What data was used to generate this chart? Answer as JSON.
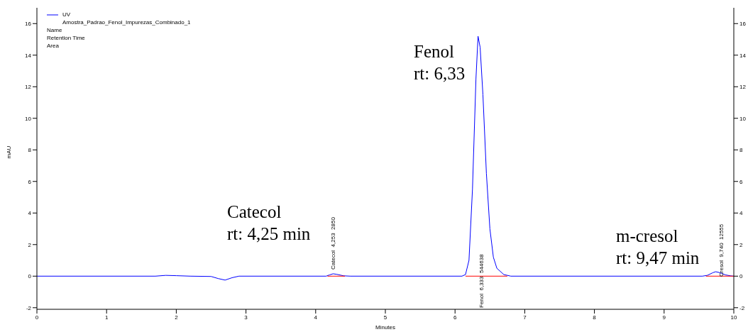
{
  "chart_data": {
    "type": "line",
    "xlabel": "Minutes",
    "ylabel": "mAU",
    "xlim": [
      0,
      10
    ],
    "xticks": [
      0,
      1,
      2,
      3,
      4,
      5,
      6,
      7,
      8,
      9,
      10
    ],
    "ylim": [
      -2.1,
      17.0
    ],
    "yticks": [
      -2,
      0,
      2,
      4,
      6,
      8,
      10,
      12,
      14,
      16
    ],
    "y2lim": [
      -2.1,
      17.0
    ],
    "y2ticks": [
      -2,
      0,
      2,
      4,
      6,
      8,
      10,
      12,
      14,
      16
    ],
    "legend": "top left",
    "series": [
      {
        "name": "UV",
        "color": "#0000ff",
        "x": [
          0,
          1.7,
          1.85,
          2.0,
          2.2,
          2.5,
          2.6,
          2.7,
          2.8,
          2.9,
          4.15,
          4.2,
          4.25,
          4.3,
          4.4,
          4.5,
          6.1,
          6.15,
          6.2,
          6.25,
          6.3,
          6.33,
          6.36,
          6.4,
          6.45,
          6.5,
          6.55,
          6.6,
          6.7,
          6.8,
          9.55,
          9.62,
          9.7,
          9.74,
          9.8,
          9.88,
          9.95,
          10
        ],
        "values": [
          0,
          0,
          0.05,
          0.03,
          0,
          -0.02,
          -0.15,
          -0.25,
          -0.1,
          0,
          0,
          0.08,
          0.15,
          0.12,
          0.02,
          0,
          0,
          0.1,
          1.0,
          5.5,
          12.5,
          15.2,
          14.5,
          11.5,
          6.5,
          3.0,
          1.2,
          0.5,
          0.1,
          0,
          0,
          0.05,
          0.22,
          0.28,
          0.22,
          0.08,
          0.02,
          0
        ]
      },
      {
        "color": "#ff0000",
        "x": [
          4.17,
          4.42
        ],
        "values": [
          0,
          0
        ]
      },
      {
        "color": "#ff0000",
        "x": [
          6.15,
          6.75
        ],
        "values": [
          0,
          0
        ]
      },
      {
        "color": "#ff0000",
        "x": [
          9.6,
          10
        ],
        "values": [
          0,
          0
        ]
      }
    ],
    "annotations": [
      "Amostra_Padrao_Fenol_Impurezas_Combinado_1",
      "Name",
      "Retention Time",
      "Area",
      "Catecol  4,253  2850",
      "Fenol  6,333  544638",
      "Cresol  9,740  12555",
      "Catecol\nrt: 4,25 min",
      "Fenol\nrt: 6,33",
      "m-cresol\nrt: 9,47 min"
    ]
  }
}
